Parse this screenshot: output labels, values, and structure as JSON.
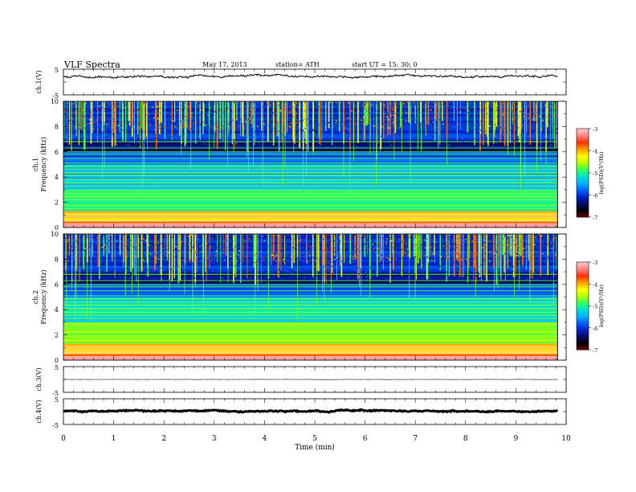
{
  "header": {
    "title": "VLF  Spectra",
    "date": "May 17, 2013",
    "station": "station= ATH",
    "start": "start  UT  =    15: 30: 0"
  },
  "chart_data": [
    {
      "type": "line",
      "name": "ch1-waveform",
      "ylabel": "ch.1(V)",
      "yticks": [
        "5",
        "-5"
      ],
      "ylim": [
        -5,
        5
      ],
      "xlim": [
        0,
        10
      ],
      "x_end": 9.83,
      "mean": 2.2,
      "noise": 0.6
    },
    {
      "type": "heatmap",
      "name": "ch1-spectrogram",
      "ylabel": "ch.1\nFrequency  (kHz)",
      "yticks": [
        "0",
        "2",
        "4",
        "6",
        "8",
        "10"
      ],
      "ylim": [
        0,
        10
      ],
      "xlim": [
        0,
        10
      ],
      "x_end": 9.83,
      "colorbar": {
        "label": "log(PSD)(V²/Hz)",
        "ticks": [
          "-3",
          "-4",
          "-5",
          "-6",
          "-7"
        ],
        "range": [
          -7,
          -3
        ]
      },
      "sferic_times_min": [
        0.07,
        0.16,
        0.25,
        0.31,
        0.42,
        0.55,
        0.68,
        0.81,
        0.97,
        1.03,
        1.12,
        1.24,
        1.37,
        1.48,
        1.56,
        1.67,
        1.83,
        1.95,
        2.02,
        2.16,
        2.31,
        2.44,
        2.52,
        2.63,
        2.78,
        2.9,
        3.06,
        3.12,
        3.27,
        3.41,
        3.53,
        3.66,
        3.8,
        3.94,
        4.07,
        4.18,
        4.29,
        4.41,
        4.57,
        4.7,
        4.83,
        4.97,
        5.08,
        5.22,
        5.35,
        5.49,
        5.58,
        5.7,
        5.86,
        5.99,
        6.1,
        6.24,
        6.37,
        6.5,
        6.58,
        6.73,
        6.87,
        7.0,
        7.12,
        7.26,
        7.39,
        7.49,
        7.63,
        7.77,
        7.9,
        8.04,
        8.18,
        8.29,
        8.43,
        8.56,
        8.7,
        8.84,
        8.97,
        9.1,
        9.21,
        9.36,
        9.5,
        9.63,
        9.74
      ]
    },
    {
      "type": "heatmap",
      "name": "ch2-spectrogram",
      "ylabel": "ch.2\nFrequency  (kHz)",
      "yticks": [
        "0",
        "2",
        "4",
        "6",
        "8",
        "10"
      ],
      "ylim": [
        0,
        10
      ],
      "xlim": [
        0,
        10
      ],
      "x_end": 9.83,
      "colorbar": {
        "label": "log(PSD)(V²/Hz)",
        "ticks": [
          "-3",
          "-4",
          "-5",
          "-6",
          "-7"
        ],
        "range": [
          -7,
          -3
        ]
      }
    },
    {
      "type": "line",
      "name": "ch3-waveform",
      "ylabel": "ch.3(V)",
      "yticks": [
        "5",
        "-5"
      ],
      "ylim": [
        -5,
        5
      ],
      "xlim": [
        0,
        10
      ],
      "x_end": 9.83,
      "mean": 0.0,
      "noise": 0.05
    },
    {
      "type": "line",
      "name": "ch4-waveform",
      "ylabel": "ch.4(V)",
      "yticks": [
        "5",
        "-5"
      ],
      "ylim": [
        -5,
        5
      ],
      "xlim": [
        0,
        10
      ],
      "x_end": 9.83,
      "mean": 0.2,
      "noise": 0.35,
      "xlabel": "Time  (min)",
      "xticks": [
        "0",
        "1",
        "2",
        "3",
        "4",
        "5",
        "6",
        "7",
        "8",
        "9",
        "10"
      ]
    }
  ],
  "colormap": [
    "#7a0000",
    "#000000",
    "#0a0a60",
    "#0020c0",
    "#0060ff",
    "#00b0ff",
    "#00e0d0",
    "#30ff60",
    "#b0ff00",
    "#ffff00",
    "#ffa000",
    "#ff3000",
    "#ff8080",
    "#ffc8c8"
  ]
}
